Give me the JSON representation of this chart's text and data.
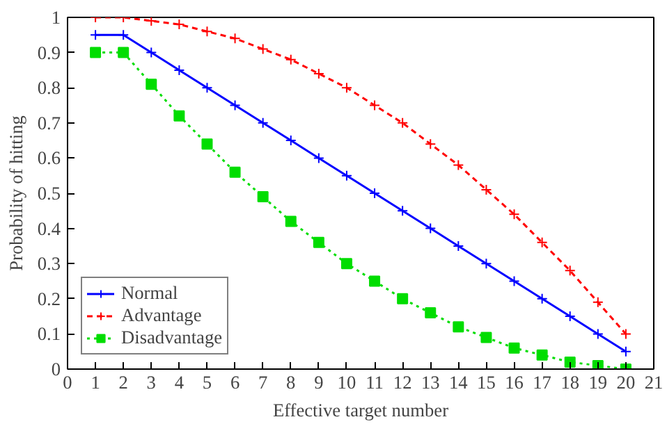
{
  "chart_data": {
    "type": "line",
    "xlabel": "Effective target number",
    "ylabel": "Probability of hitting",
    "x": [
      1,
      2,
      3,
      4,
      5,
      6,
      7,
      8,
      9,
      10,
      11,
      12,
      13,
      14,
      15,
      16,
      17,
      18,
      19,
      20
    ],
    "series": [
      {
        "name": "Normal",
        "color": "#0000ff",
        "marker": "cross",
        "line_style": "solid",
        "values": [
          0.95,
          0.95,
          0.9,
          0.85,
          0.8,
          0.75,
          0.7,
          0.65,
          0.6,
          0.55,
          0.5,
          0.45,
          0.4,
          0.35,
          0.3,
          0.25,
          0.2,
          0.15,
          0.1,
          0.05
        ]
      },
      {
        "name": "Advantage",
        "color": "#ff0000",
        "marker": "cross",
        "line_style": "dashed",
        "values": [
          1.0,
          1.0,
          0.99,
          0.98,
          0.96,
          0.94,
          0.91,
          0.88,
          0.84,
          0.8,
          0.75,
          0.7,
          0.64,
          0.58,
          0.51,
          0.44,
          0.36,
          0.28,
          0.19,
          0.1
        ]
      },
      {
        "name": "Disadvantage",
        "color": "#00dd00",
        "marker": "square",
        "line_style": "dotted",
        "values": [
          0.9,
          0.9,
          0.81,
          0.72,
          0.64,
          0.56,
          0.49,
          0.42,
          0.36,
          0.3,
          0.25,
          0.2,
          0.16,
          0.12,
          0.09,
          0.06,
          0.04,
          0.02,
          0.01,
          0.0
        ]
      }
    ],
    "xlim": [
      0,
      21
    ],
    "xticks": [
      0,
      1,
      2,
      3,
      4,
      5,
      6,
      7,
      8,
      9,
      10,
      11,
      12,
      13,
      14,
      15,
      16,
      17,
      18,
      19,
      20,
      21
    ],
    "ylim": [
      0,
      1
    ],
    "yticks": [
      0,
      0.1,
      0.2,
      0.3,
      0.4,
      0.5,
      0.6,
      0.7,
      0.8,
      0.9,
      1
    ],
    "grid": false,
    "legend": "bottom left"
  }
}
